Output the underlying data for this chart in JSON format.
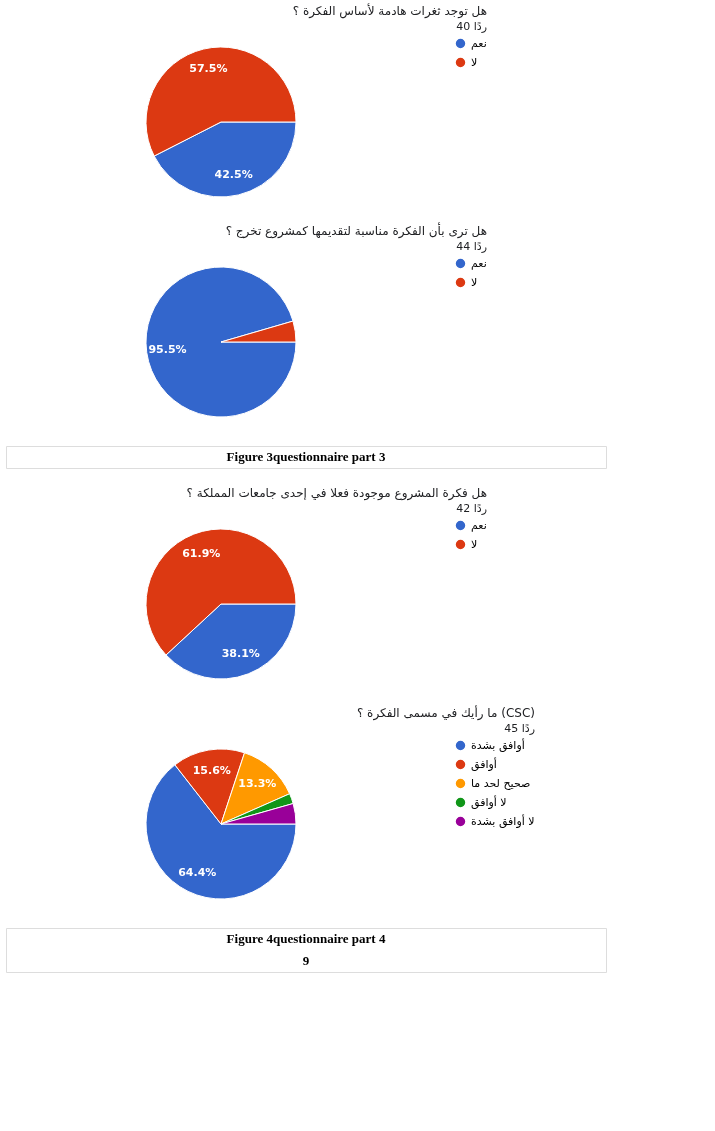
{
  "chart_data": [
    {
      "type": "pie",
      "title": "هل توجد ثغرات هادمة لأساس الفكرة ؟",
      "subtitle": "40 ردًا",
      "categories": [
        "نعم",
        "لا"
      ],
      "values": [
        42.5,
        57.5
      ],
      "colors": [
        "#3366cc",
        "#dc3912"
      ],
      "value_labels": [
        "42.5%",
        "57.5%"
      ],
      "legend": "right"
    },
    {
      "type": "pie",
      "title": "هل ترى بأن الفكرة مناسبة لتقديمها كمشروع تخرج ؟",
      "subtitle": "44 ردًا",
      "categories": [
        "نعم",
        "لا"
      ],
      "values": [
        95.5,
        4.5
      ],
      "colors": [
        "#3366cc",
        "#dc3912"
      ],
      "value_labels": [
        "95.5%",
        null
      ],
      "legend": "right",
      "annotations": [
        "Figure 3questionnaire part 3"
      ]
    },
    {
      "type": "pie",
      "title": "هل فكرة المشروع موجودة فعلا في إحدى جامعات المملكة ؟",
      "subtitle": "42 ردًا",
      "categories": [
        "نعم",
        "لا"
      ],
      "values": [
        38.1,
        61.9
      ],
      "colors": [
        "#3366cc",
        "#dc3912"
      ],
      "value_labels": [
        "38.1%",
        "61.9%"
      ],
      "legend": "right"
    },
    {
      "type": "pie",
      "title": "ما رأيك في مسمى الفكرة ؟ (CSC)",
      "subtitle": "45 ردًا",
      "categories": [
        "أوافق بشدة",
        "أوافق",
        "صحيح لحد ما",
        "لا أوافق",
        "لا أوافق بشدة"
      ],
      "values": [
        64.4,
        15.6,
        13.3,
        2.2,
        4.4
      ],
      "colors": [
        "#3366cc",
        "#dc3912",
        "#ff9900",
        "#109618",
        "#990099"
      ],
      "value_labels": [
        "64.4%",
        "15.6%",
        "13.3%",
        null,
        null
      ],
      "legend": "right",
      "annotations": [
        "Figure 4questionnaire part 4",
        "9"
      ]
    }
  ]
}
